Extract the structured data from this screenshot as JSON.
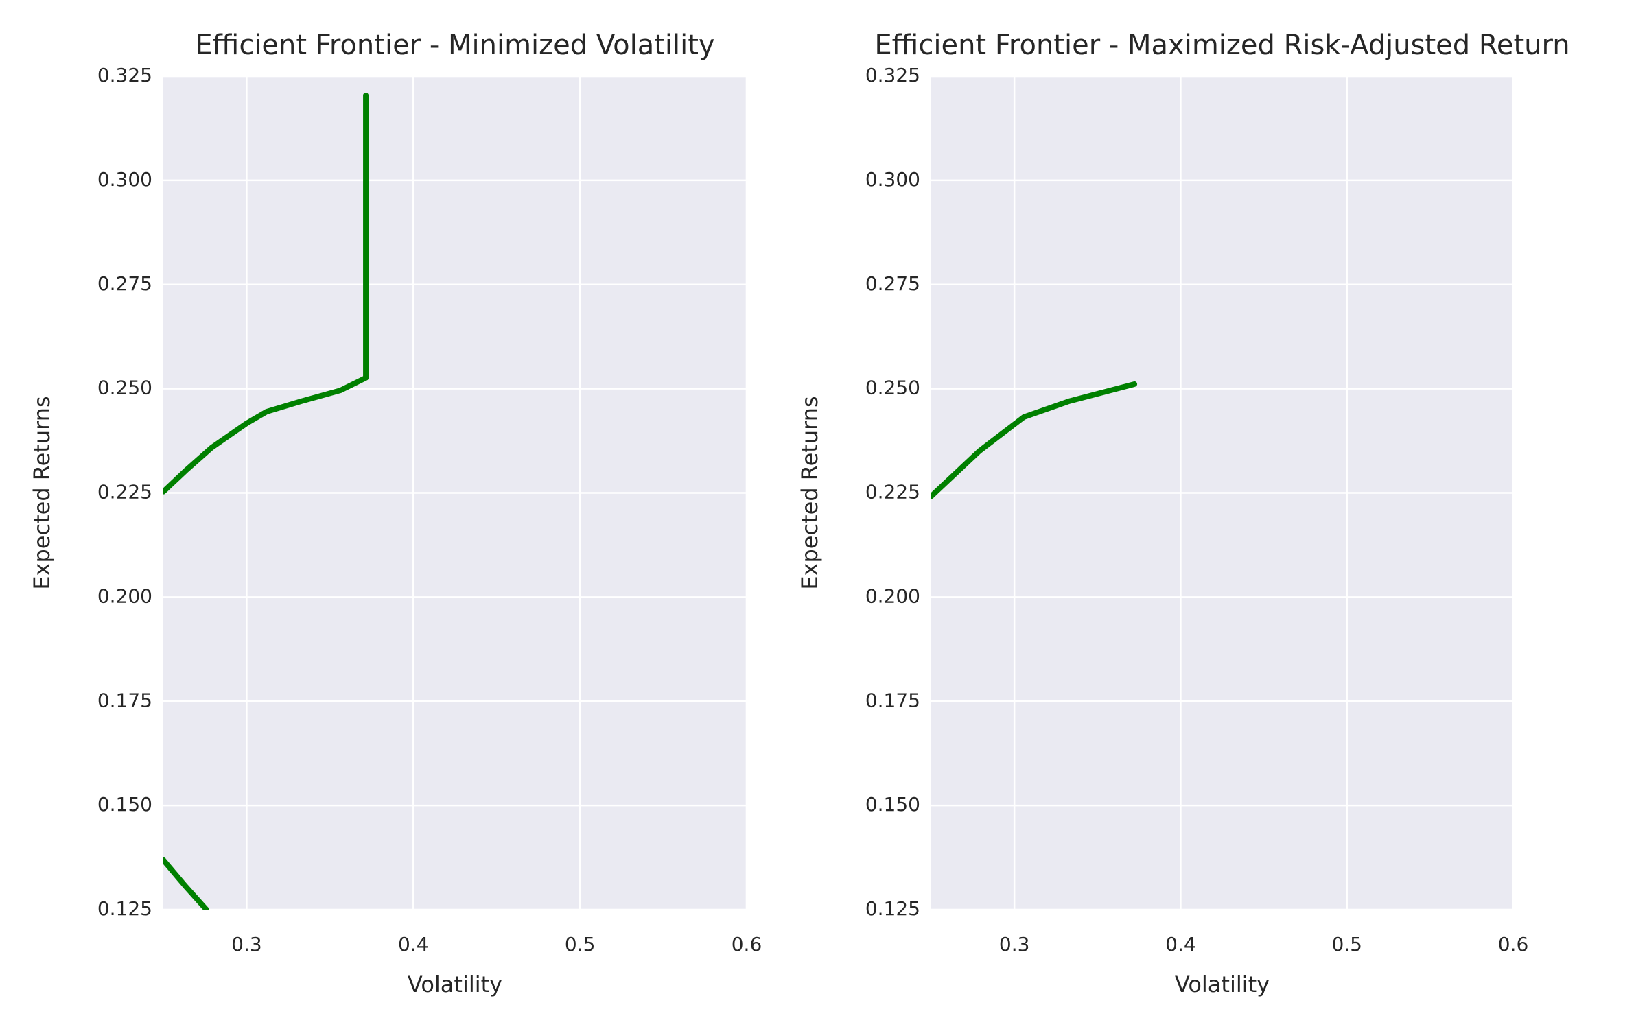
{
  "chart_data": [
    {
      "type": "line",
      "title": "Efficient Frontier - Minimized Volatility",
      "x_label": "Volatility",
      "y_label": "Expected Returns",
      "xlim": [
        0.25,
        0.6
      ],
      "ylim": [
        0.125,
        0.325
      ],
      "xticks": [
        0.3,
        0.4,
        0.5,
        0.6
      ],
      "yticks": [
        {
          "value": 0.125,
          "label": "0.125"
        },
        {
          "value": 0.15,
          "label": "0.150"
        },
        {
          "value": 0.175,
          "label": "0.175"
        },
        {
          "value": 0.2,
          "label": "0.200"
        },
        {
          "value": 0.225,
          "label": "0.225"
        },
        {
          "value": 0.25,
          "label": "0.250"
        },
        {
          "value": 0.275,
          "label": "0.275"
        },
        {
          "value": 0.3,
          "label": "0.300"
        },
        {
          "value": 0.325,
          "label": "0.325"
        }
      ],
      "grid": true,
      "series": [
        {
          "color": "#008000",
          "x": [
            0.25,
            0.2633,
            0.2791,
            0.3,
            0.312,
            0.3329,
            0.3563,
            0.3715,
            0.3715,
            null,
            0.25,
            0.2633,
            0.2759
          ],
          "values": [
            0.2253,
            0.2303,
            0.2359,
            0.2417,
            0.2445,
            0.247,
            0.2496,
            0.2526,
            0.3204,
            null,
            0.1369,
            0.1306,
            0.125
          ]
        }
      ]
    },
    {
      "type": "line",
      "title": "Efficient Frontier - Maximized Risk-Adjusted Return",
      "x_label": "Volatility",
      "y_label": "Expected Returns",
      "xlim": [
        0.25,
        0.6
      ],
      "ylim": [
        0.125,
        0.325
      ],
      "xticks": [
        0.3,
        0.4,
        0.5,
        0.6
      ],
      "yticks": [
        {
          "value": 0.125,
          "label": "0.125"
        },
        {
          "value": 0.15,
          "label": "0.150"
        },
        {
          "value": 0.175,
          "label": "0.175"
        },
        {
          "value": 0.2,
          "label": "0.200"
        },
        {
          "value": 0.225,
          "label": "0.225"
        },
        {
          "value": 0.25,
          "label": "0.250"
        },
        {
          "value": 0.275,
          "label": "0.275"
        },
        {
          "value": 0.3,
          "label": "0.300"
        },
        {
          "value": 0.325,
          "label": "0.325"
        }
      ],
      "grid": true,
      "series": [
        {
          "color": "#008000",
          "x": [
            0.25,
            0.2791,
            0.3057,
            0.3329,
            0.3722
          ],
          "values": [
            0.2242,
            0.2351,
            0.2432,
            0.247,
            0.2511
          ]
        }
      ]
    }
  ]
}
